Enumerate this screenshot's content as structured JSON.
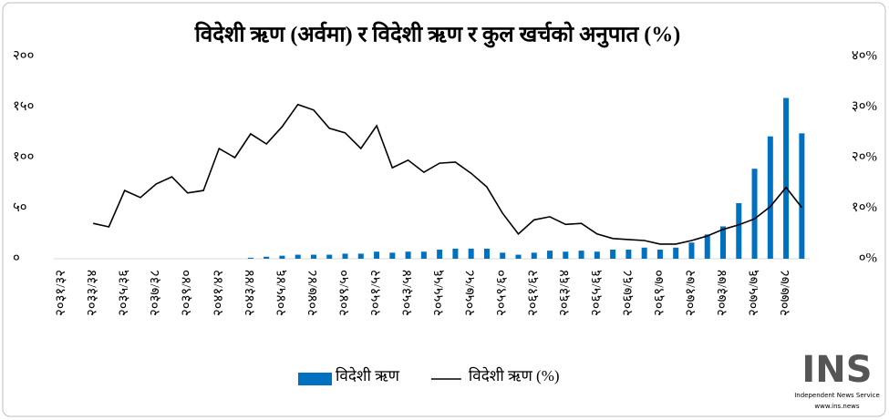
{
  "chart_data": {
    "type": "bar-line",
    "title": "विदेशी ऋण (अर्वमा) र विदेशी ऋण र कुल खर्चको अनुपात (%)",
    "categories": [
      "२०३१/३२",
      null,
      "२०३३/३४",
      null,
      "२०३५/३६",
      null,
      "२०३७/३८",
      null,
      "२०३९/४०",
      null,
      "२०४१/४२",
      null,
      "२०४३/४४",
      null,
      "२०४५/४६",
      null,
      "२०४७/४८",
      null,
      "२०४९/५०",
      null,
      "२०५१/५२",
      null,
      "२०५३/५४",
      null,
      "२०५५/५६",
      null,
      "२०५७/५८",
      null,
      "२०५९/६०",
      null,
      "२०६१/६२",
      null,
      "२०६३/६४",
      null,
      "२०६५/६६",
      null,
      "२०६७/६८",
      null,
      "२०६९/७०",
      null,
      "२०७१/७२",
      null,
      "२०७३/७४",
      null,
      "२०७५/७६",
      null,
      "२०७७/७८",
      null
    ],
    "series": [
      {
        "name": "विदेशी ऋण",
        "type": "bar",
        "color": "#0070c0",
        "values": [
          null,
          null,
          null,
          null,
          null,
          null,
          null,
          null,
          null,
          null,
          null,
          null,
          1,
          2,
          3,
          4,
          4,
          4,
          5,
          5,
          7,
          6,
          7,
          7,
          9,
          10,
          10,
          10,
          6,
          4,
          6,
          8,
          7,
          8,
          7,
          9,
          9,
          11,
          9,
          11,
          16,
          24,
          32,
          55,
          89,
          121,
          159,
          124
        ]
      },
      {
        "name": "विदेशी ऋण (%)",
        "type": "line",
        "axis": "y2",
        "color": "#000000",
        "values": [
          null,
          null,
          7.0,
          6.3,
          13.5,
          12.1,
          14.8,
          16.2,
          13.0,
          13.5,
          21.8,
          20.0,
          24.7,
          22.7,
          26.1,
          30.5,
          29.4,
          25.8,
          24.9,
          21.8,
          26.3,
          18.0,
          19.5,
          17.1,
          18.9,
          19.1,
          16.9,
          14.2,
          9.0,
          4.9,
          7.7,
          8.3,
          6.8,
          7.0,
          4.9,
          4.0,
          3.8,
          3.6,
          2.9,
          2.9,
          3.6,
          4.5,
          5.8,
          6.7,
          7.9,
          10.3,
          14.1,
          10.1
        ]
      }
    ],
    "ylim": [
      0,
      200
    ],
    "yticks": [
      {
        "value": 0,
        "label": "०"
      },
      {
        "value": 50,
        "label": "५०"
      },
      {
        "value": 100,
        "label": "१००"
      },
      {
        "value": 150,
        "label": "१५०"
      },
      {
        "value": 200,
        "label": "२००"
      }
    ],
    "y2lim": [
      0,
      40
    ],
    "y2ticks": [
      {
        "value": 0,
        "label": "०%"
      },
      {
        "value": 10,
        "label": "१०%"
      },
      {
        "value": 20,
        "label": "२०%"
      },
      {
        "value": 30,
        "label": "३०%"
      },
      {
        "value": 40,
        "label": "४०%"
      }
    ],
    "legend": "bottom"
  },
  "watermark": {
    "logo": "INS",
    "tagline": "Independent News Service",
    "url": "www.ins.news"
  }
}
